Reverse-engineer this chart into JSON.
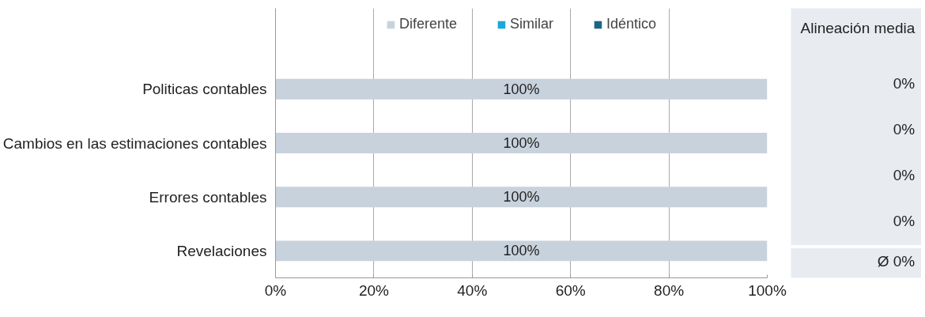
{
  "chart_data": [
    {
      "type": "bar",
      "orientation": "horizontal",
      "stacked": true,
      "categories": [
        "Politicas contables",
        "Cambios en las estimaciones contables",
        "Errores contables",
        "Revelaciones"
      ],
      "series": [
        {
          "name": "Diferente",
          "color": "#c8d2dd",
          "values": [
            100,
            100,
            100,
            100
          ],
          "value_labels": [
            "100%",
            "100%",
            "100%",
            "100%"
          ]
        },
        {
          "name": "Similar",
          "color": "#1ba7d8",
          "values": [
            0,
            0,
            0,
            0
          ]
        },
        {
          "name": "Idéntico",
          "color": "#1b6687",
          "values": [
            0,
            0,
            0,
            0
          ]
        }
      ],
      "xlim": [
        0,
        100
      ],
      "xticks": [
        {
          "value": 0,
          "label": "0%"
        },
        {
          "value": 20,
          "label": "20%"
        },
        {
          "value": 40,
          "label": "40%"
        },
        {
          "value": 60,
          "label": "60%"
        },
        {
          "value": 80,
          "label": "80%"
        },
        {
          "value": 100,
          "label": "100%"
        }
      ],
      "grid": "x",
      "legend": "top"
    },
    {
      "type": "other",
      "title": "Alineación media",
      "annotations": [
        "0%",
        "0%",
        "0%",
        "0%",
        "Ø 0%"
      ]
    }
  ]
}
